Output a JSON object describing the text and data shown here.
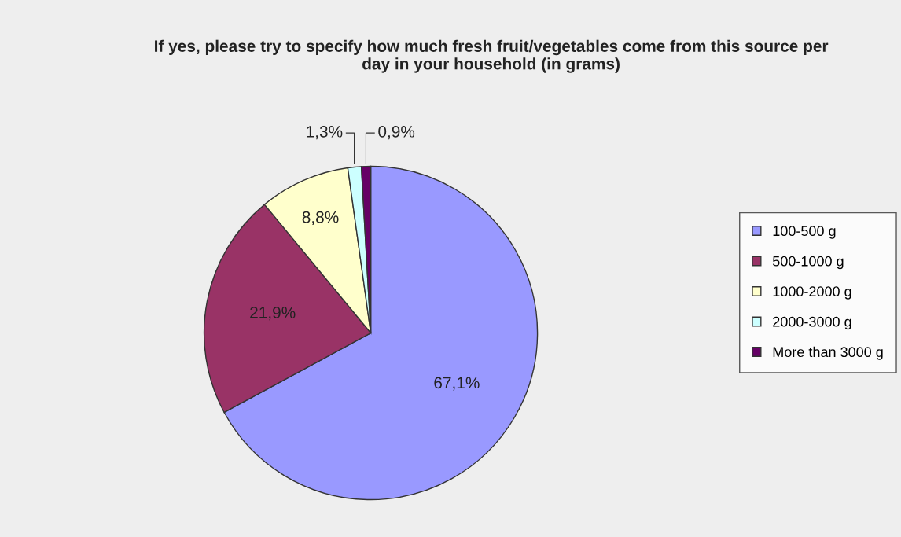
{
  "chart_data": {
    "type": "pie",
    "title": "If yes, please try to specify how much fresh fruit/vegetables come from this source per day in your household (in grams)",
    "categories": [
      "100-500 g",
      "500-1000 g",
      "1000-2000 g",
      "2000-3000 g",
      "More than 3000 g"
    ],
    "values": [
      67.1,
      21.9,
      8.8,
      1.3,
      0.9
    ],
    "colors": [
      "#9999ff",
      "#993366",
      "#ffffcc",
      "#ccffff",
      "#660066"
    ],
    "value_labels": [
      "67,1%",
      "21,9%",
      "8,8%",
      "1,3%",
      "0,9%"
    ],
    "legend": "right"
  }
}
